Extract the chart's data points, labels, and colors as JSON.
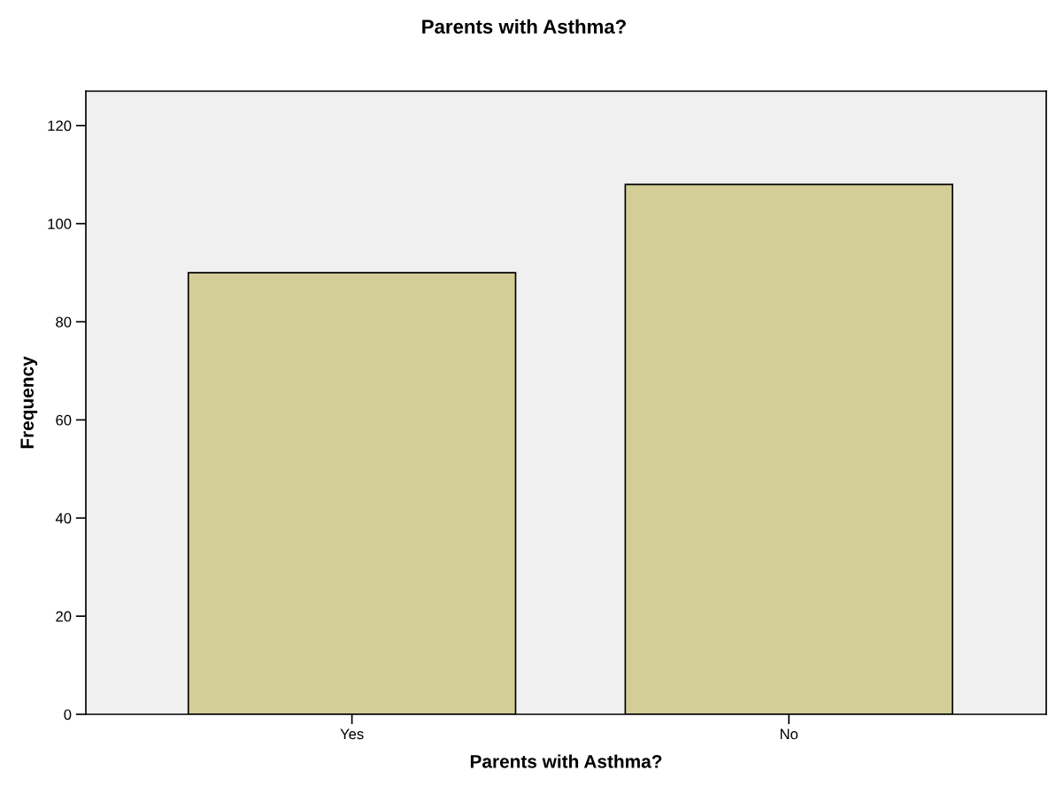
{
  "chart_data": {
    "type": "bar",
    "title": "Parents with Asthma?",
    "xlabel": "Parents with Asthma?",
    "ylabel": "Frequency",
    "categories": [
      "Yes",
      "No"
    ],
    "values": [
      90,
      108
    ],
    "color": "#d3ce97",
    "ylim": [
      0,
      127
    ],
    "yticks": [
      0,
      20,
      40,
      60,
      80,
      100,
      120
    ],
    "grid": false,
    "legend": false
  }
}
